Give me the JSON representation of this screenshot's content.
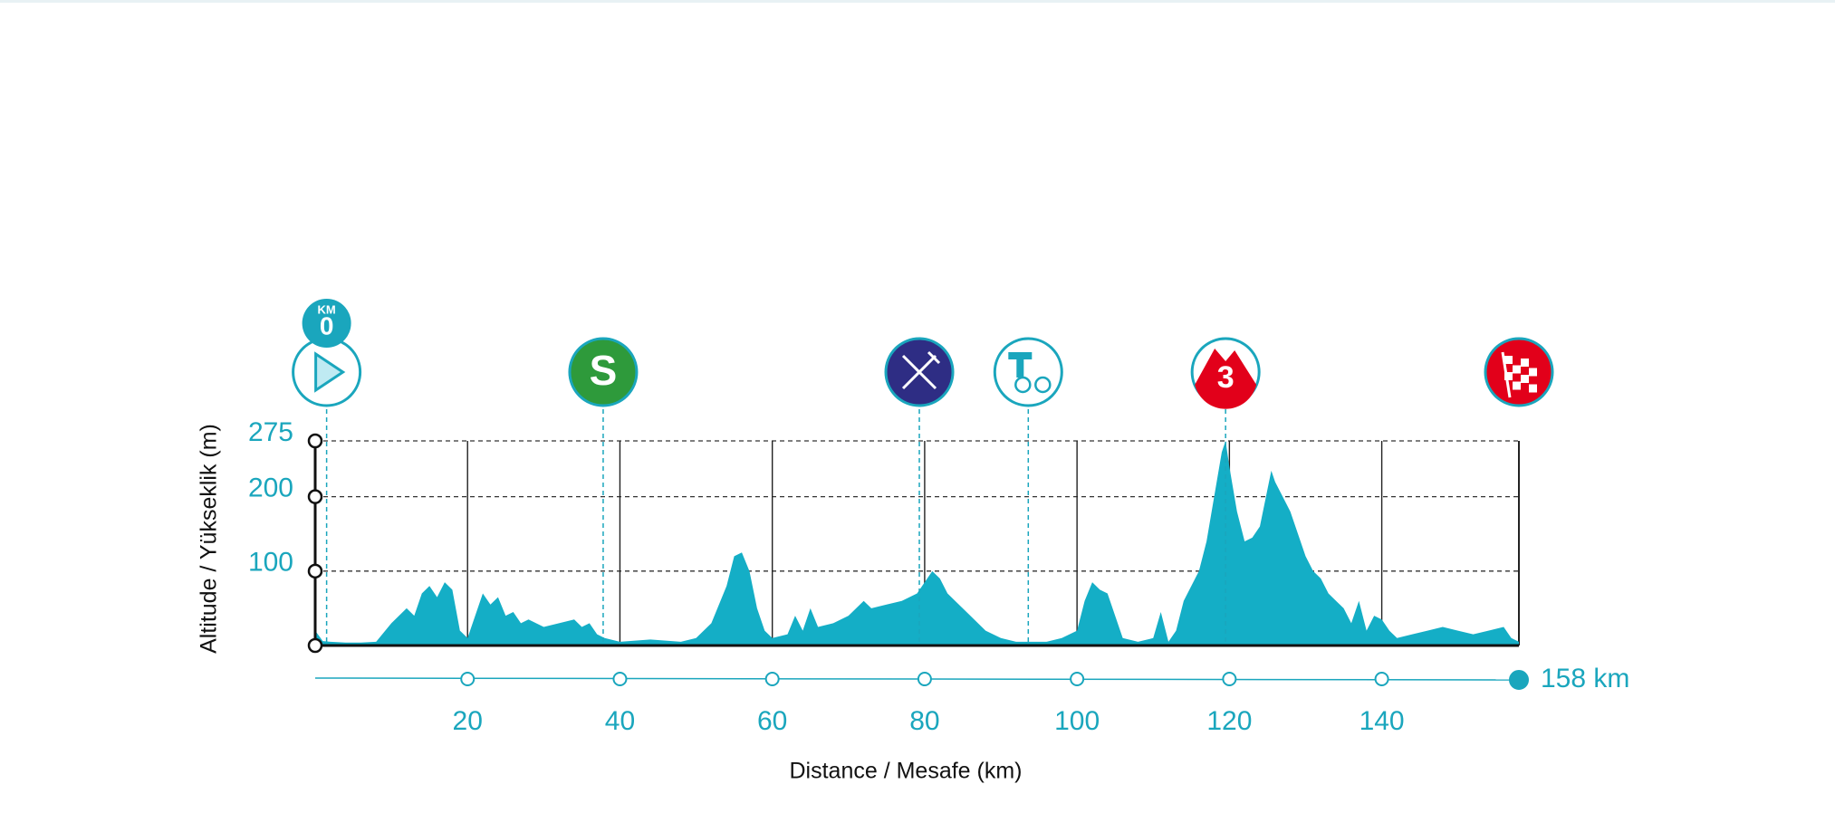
{
  "chart_data": {
    "type": "area",
    "y_label": "Altitude / Yükseklik (m)",
    "x_label": "Distance / Mesafe  (km)",
    "color": "#14aec6",
    "xlim": [
      0,
      158
    ],
    "ylim": [
      0,
      275
    ],
    "xticks": [
      20,
      40,
      60,
      80,
      100,
      120,
      140,
      {
        "value": 158,
        "label": "158 km"
      }
    ],
    "yticks": [
      100,
      200,
      275
    ],
    "grid": true,
    "x": [
      0,
      1,
      2,
      4,
      6,
      8,
      10,
      12,
      13,
      14,
      15,
      16,
      17,
      18,
      19,
      20,
      21,
      22,
      23,
      24,
      25,
      26,
      27,
      28,
      30,
      32,
      34,
      35,
      36,
      37,
      38,
      40,
      44,
      48,
      50,
      52,
      54,
      55,
      56,
      57,
      58,
      59,
      60,
      62,
      63,
      64,
      65,
      66,
      68,
      70,
      72,
      73,
      75,
      77,
      79,
      80,
      81,
      82,
      83,
      84,
      86,
      88,
      90,
      92,
      94,
      96,
      98,
      100,
      101,
      102,
      103,
      104,
      105,
      106,
      108,
      110,
      111,
      112,
      113,
      114,
      116,
      117,
      118,
      119,
      119.5,
      120,
      121,
      122,
      123,
      124,
      125,
      125.5,
      126,
      127,
      128,
      129,
      130,
      131,
      132,
      133,
      134,
      135,
      136,
      137,
      138,
      139,
      140,
      141,
      142,
      144,
      146,
      148,
      150,
      152,
      154,
      156,
      157,
      158
    ],
    "values": [
      20,
      6,
      5,
      4,
      4,
      5,
      30,
      50,
      40,
      70,
      80,
      65,
      85,
      75,
      20,
      10,
      40,
      70,
      55,
      65,
      40,
      45,
      30,
      35,
      25,
      30,
      35,
      25,
      30,
      15,
      10,
      5,
      8,
      5,
      10,
      30,
      80,
      120,
      125,
      100,
      50,
      20,
      10,
      15,
      40,
      20,
      50,
      25,
      30,
      40,
      60,
      50,
      55,
      60,
      70,
      85,
      100,
      90,
      70,
      60,
      40,
      20,
      10,
      5,
      5,
      5,
      10,
      20,
      60,
      85,
      75,
      70,
      40,
      10,
      5,
      10,
      45,
      5,
      20,
      60,
      100,
      140,
      200,
      260,
      275,
      240,
      180,
      140,
      145,
      160,
      210,
      235,
      220,
      200,
      180,
      150,
      120,
      100,
      90,
      70,
      60,
      50,
      30,
      60,
      20,
      40,
      35,
      20,
      10,
      15,
      20,
      25,
      20,
      15,
      20,
      25,
      10,
      5
    ],
    "markers": [
      {
        "km": 1.5,
        "icon": "start",
        "top": "KM",
        "label": "0"
      },
      {
        "km": 37.8,
        "icon": "sprint",
        "label": "S"
      },
      {
        "km": 79.3,
        "icon": "feed"
      },
      {
        "km": 93.6,
        "icon": "tech"
      },
      {
        "km": 119.5,
        "icon": "climb",
        "label": "3"
      },
      {
        "km": 158,
        "icon": "finish"
      }
    ]
  }
}
